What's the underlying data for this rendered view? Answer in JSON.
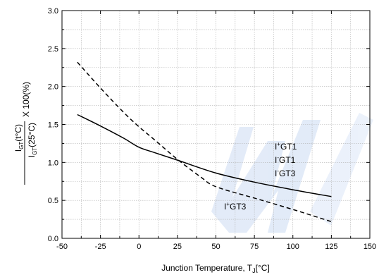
{
  "chart_data": {
    "type": "line",
    "title": "",
    "xlabel": "Junction Temperature, Tⱼ[°C]",
    "xlabel_main": "Junction Temperature, T",
    "xlabel_sub": "J",
    "xlabel_unit": "[°C]",
    "ylabel_numerator": "I",
    "ylabel_numerator_sub": "GT",
    "ylabel_numerator_arg": "(t°C)",
    "ylabel_denominator": "I",
    "ylabel_denominator_sub": "GT",
    "ylabel_denominator_arg": "(25°C)",
    "ylabel_suffix": "X 100(%)",
    "xlim": [
      -50,
      150
    ],
    "ylim": [
      0.0,
      3.0
    ],
    "x_ticks": [
      -50,
      -25,
      0,
      25,
      50,
      75,
      100,
      125,
      150
    ],
    "y_ticks": [
      "0.0",
      "0.5",
      "1.0",
      "1.5",
      "2.0",
      "2.5",
      "3.0"
    ],
    "grid": true,
    "series": [
      {
        "style": "solid",
        "x": [
          -40,
          -25,
          -10,
          0,
          10,
          25,
          50,
          75,
          100,
          125
        ],
        "y": [
          1.63,
          1.48,
          1.32,
          1.2,
          1.13,
          1.03,
          0.86,
          0.74,
          0.64,
          0.55
        ]
      },
      {
        "style": "dashed",
        "x": [
          -40,
          -25,
          -10,
          0,
          10,
          25,
          40,
          50,
          75,
          100,
          125
        ],
        "y": [
          2.32,
          1.98,
          1.66,
          1.47,
          1.3,
          1.04,
          0.81,
          0.68,
          0.53,
          0.38,
          0.22
        ]
      }
    ],
    "annotations": [
      {
        "prefix": "I",
        "sup": "+",
        "text": "GT1"
      },
      {
        "prefix": "I",
        "sup": "-",
        "text": "GT1"
      },
      {
        "prefix": "I",
        "sup": "-",
        "text": "GT3"
      },
      {
        "prefix": "I",
        "sup": "+",
        "text": "GT3"
      }
    ]
  }
}
